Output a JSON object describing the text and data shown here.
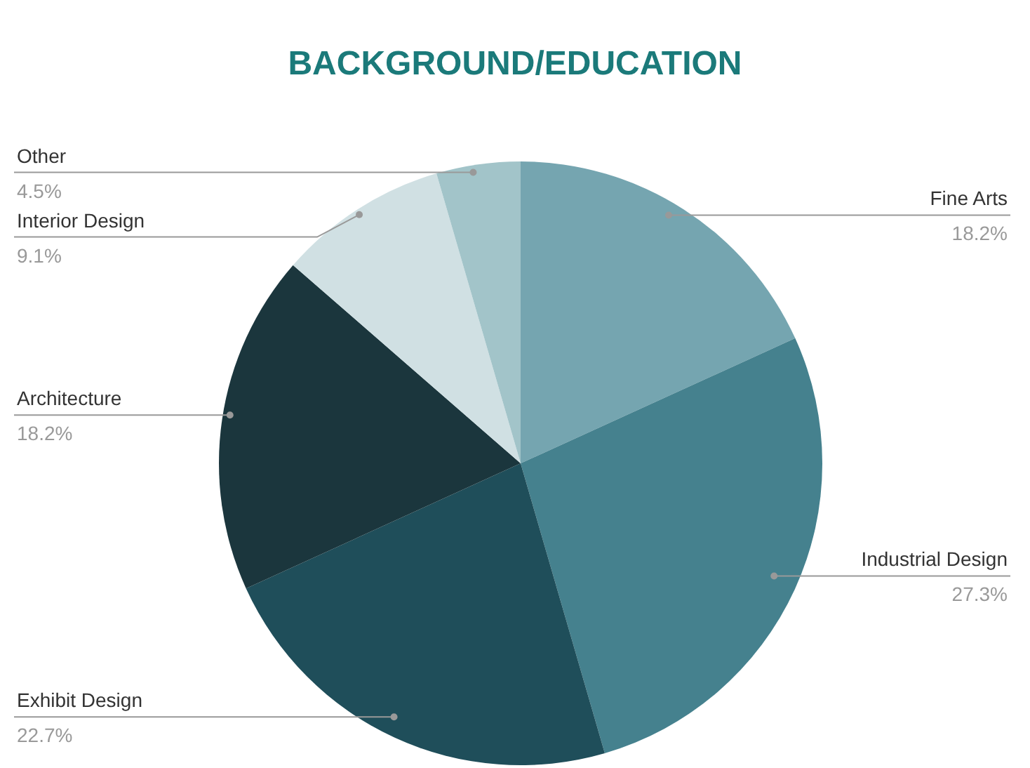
{
  "chart_data": {
    "type": "pie",
    "title": "BACKGROUND/EDUCATION",
    "categories": [
      "Fine Arts",
      "Industrial Design",
      "Exhibit Design",
      "Architecture",
      "Interior Design",
      "Other"
    ],
    "values": [
      18.2,
      27.3,
      22.7,
      18.2,
      9.1,
      4.5
    ],
    "colors": [
      "#75a5b0",
      "#45818e",
      "#1f4e5a",
      "#1b363d",
      "#d0e0e3",
      "#a2c4c9"
    ],
    "value_labels": [
      "18.2%",
      "27.3%",
      "22.7%",
      "18.2%",
      "9.1%",
      "4.5%"
    ]
  }
}
